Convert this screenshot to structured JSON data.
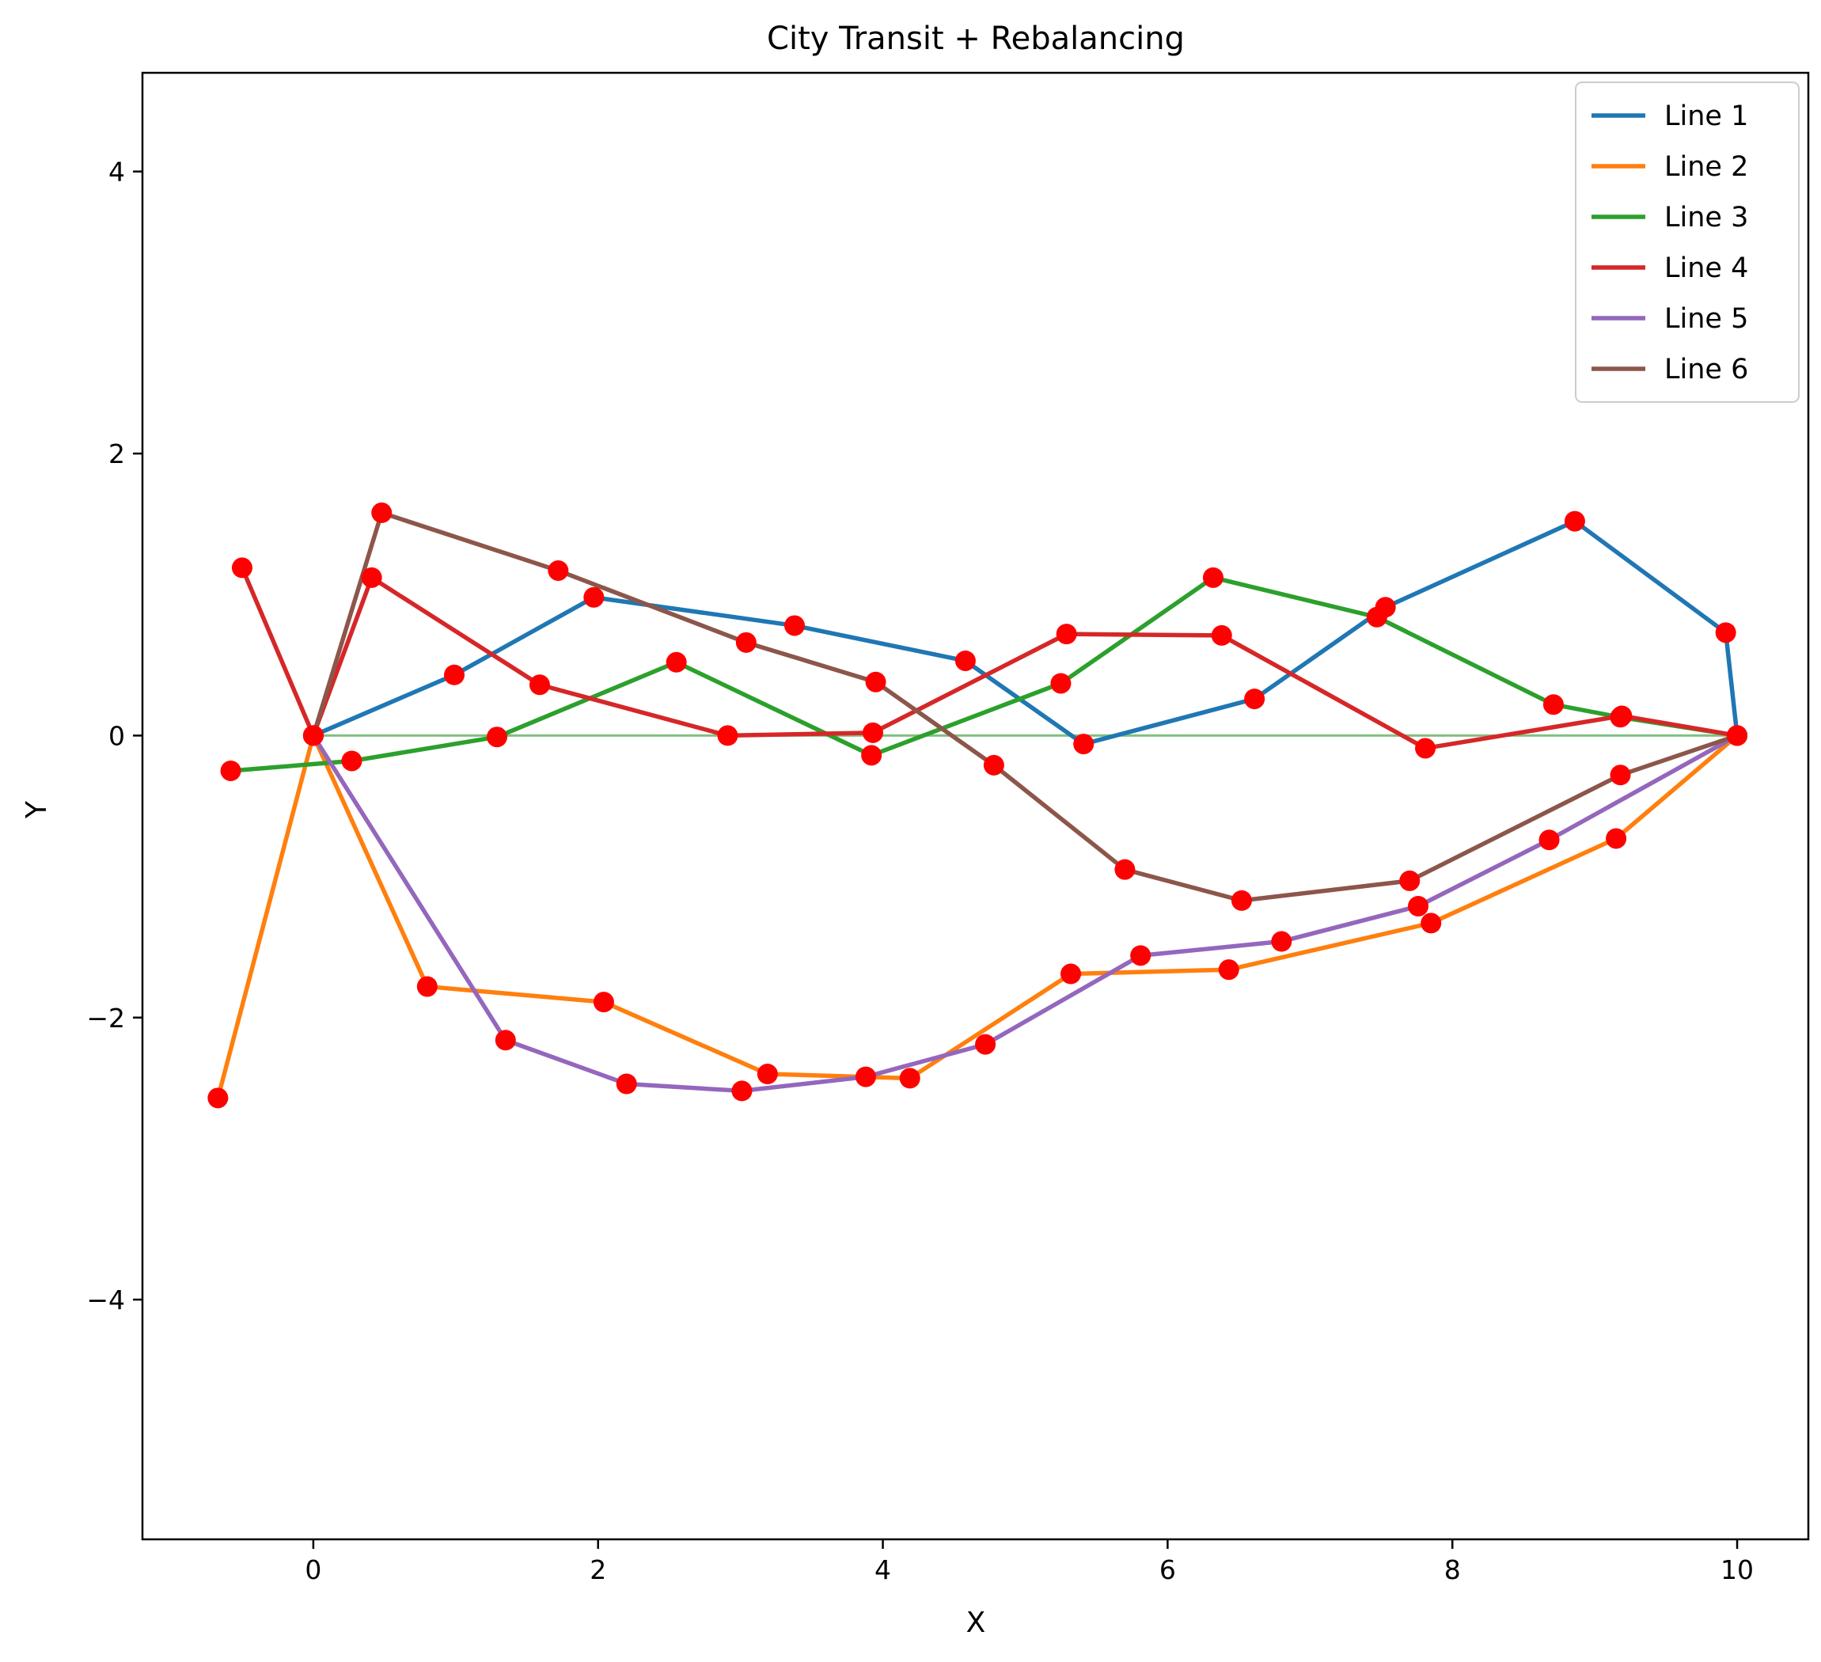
{
  "chart_data": {
    "type": "line",
    "title": "City Transit + Rebalancing",
    "xlabel": "X",
    "ylabel": "Y",
    "xlim": [
      -1.2,
      10.5
    ],
    "ylim": [
      -5.7,
      4.7
    ],
    "xticks": [
      0,
      2,
      4,
      6,
      8,
      10
    ],
    "yticks": [
      -4,
      -2,
      0,
      2,
      4
    ],
    "grid": false,
    "legend_position": "top-right",
    "marker_color": "#ff0000",
    "baseline": {
      "y": 0,
      "x": [
        0,
        10
      ],
      "color": "#80c080"
    },
    "series": [
      {
        "name": "Line 1",
        "color": "#1f77b4",
        "points": [
          [
            0,
            0
          ],
          [
            0.99,
            0.43
          ],
          [
            1.97,
            0.98
          ],
          [
            3.38,
            0.78
          ],
          [
            4.58,
            0.53
          ],
          [
            5.41,
            -0.06
          ],
          [
            6.61,
            0.26
          ],
          [
            7.53,
            0.91
          ],
          [
            8.86,
            1.52
          ],
          [
            9.92,
            0.73
          ],
          [
            10,
            0
          ]
        ]
      },
      {
        "name": "Line 2",
        "color": "#ff7f0e",
        "points": [
          [
            -0.67,
            -2.57
          ],
          [
            0,
            0
          ],
          [
            0.8,
            -1.78
          ],
          [
            2.04,
            -1.89
          ],
          [
            3.19,
            -2.4
          ],
          [
            4.19,
            -2.43
          ],
          [
            5.32,
            -1.69
          ],
          [
            6.43,
            -1.66
          ],
          [
            7.85,
            -1.33
          ],
          [
            9.15,
            -0.73
          ],
          [
            10,
            0
          ]
        ]
      },
      {
        "name": "Line 3",
        "color": "#2ca02c",
        "points": [
          [
            -0.58,
            -0.25
          ],
          [
            0.27,
            -0.18
          ],
          [
            1.29,
            -0.01
          ],
          [
            2.55,
            0.52
          ],
          [
            3.92,
            -0.14
          ],
          [
            5.25,
            0.37
          ],
          [
            6.32,
            1.12
          ],
          [
            7.47,
            0.84
          ],
          [
            8.71,
            0.22
          ],
          [
            9.18,
            0.13
          ],
          [
            10,
            0
          ]
        ]
      },
      {
        "name": "Line 4",
        "color": "#d62728",
        "points": [
          [
            -0.5,
            1.19
          ],
          [
            0,
            0
          ],
          [
            0.41,
            1.12
          ],
          [
            1.59,
            0.36
          ],
          [
            2.91,
            0.0
          ],
          [
            3.93,
            0.02
          ],
          [
            5.29,
            0.72
          ],
          [
            6.38,
            0.71
          ],
          [
            7.81,
            -0.09
          ],
          [
            9.19,
            0.14
          ],
          [
            10,
            0
          ]
        ]
      },
      {
        "name": "Line 5",
        "color": "#9467bd",
        "points": [
          [
            0,
            0
          ],
          [
            1.35,
            -2.16
          ],
          [
            2.2,
            -2.47
          ],
          [
            3.01,
            -2.52
          ],
          [
            3.88,
            -2.42
          ],
          [
            4.72,
            -2.19
          ],
          [
            5.81,
            -1.56
          ],
          [
            6.8,
            -1.46
          ],
          [
            7.76,
            -1.21
          ],
          [
            8.68,
            -0.74
          ],
          [
            10,
            0
          ]
        ]
      },
      {
        "name": "Line 6",
        "color": "#8c564b",
        "points": [
          [
            0,
            0
          ],
          [
            0.48,
            1.58
          ],
          [
            1.72,
            1.17
          ],
          [
            3.04,
            0.66
          ],
          [
            3.95,
            0.38
          ],
          [
            4.78,
            -0.21
          ],
          [
            5.7,
            -0.95
          ],
          [
            6.52,
            -1.17
          ],
          [
            7.7,
            -1.03
          ],
          [
            9.18,
            -0.28
          ],
          [
            10,
            0
          ]
        ]
      }
    ]
  }
}
